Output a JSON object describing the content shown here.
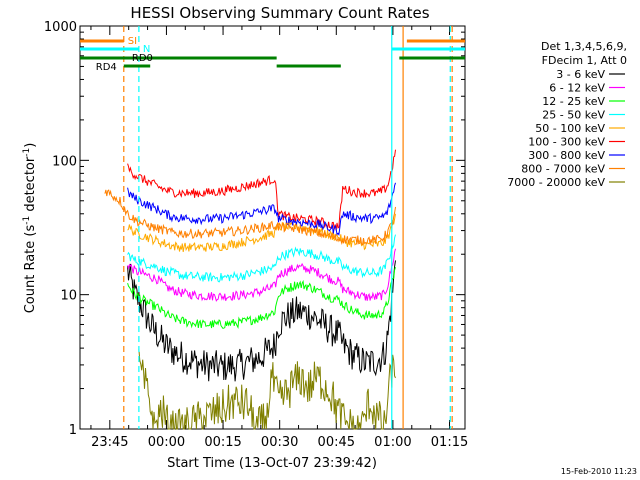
{
  "chart_data": {
    "type": "line",
    "title": "HESSI Observing Summary Count Rates",
    "xlabel": "Start Time (13-Oct-07 23:39:42)",
    "ylabel_main": "Count Rate (s",
    "ylabel_sup1": "-1",
    "ylabel_mid": " detector",
    "ylabel_sup2": "-1",
    "ylabel_end": ")",
    "yscale": "log",
    "xlim_minutes": [
      -2.6,
      99.4
    ],
    "ylim": [
      1,
      1000
    ],
    "x_ticks": [
      {
        "label": "23:45",
        "minute": 5.3
      },
      {
        "label": "00:00",
        "minute": 20.3
      },
      {
        "label": "00:15",
        "minute": 35.3
      },
      {
        "label": "00:30",
        "minute": 50.3
      },
      {
        "label": "00:45",
        "minute": 65.3
      },
      {
        "label": "01:00",
        "minute": 80.3
      },
      {
        "label": "01:15",
        "minute": 95.3
      }
    ],
    "y_ticks": [
      {
        "label": "1",
        "value": 1
      },
      {
        "label": "10",
        "value": 10
      },
      {
        "label": "100",
        "value": 100
      },
      {
        "label": "1000",
        "value": 1000
      }
    ],
    "legend_header": [
      "Det 1,3,4,5,6,9,",
      "FDecim 1, Att 0"
    ],
    "series": [
      {
        "name": "3 - 6 keV",
        "color": "#000000",
        "points": [
          [
            10,
            15
          ],
          [
            12,
            10
          ],
          [
            14,
            8
          ],
          [
            16,
            6
          ],
          [
            18,
            5
          ],
          [
            20,
            4.2
          ],
          [
            22,
            3.8
          ],
          [
            25,
            3.4
          ],
          [
            30,
            3.0
          ],
          [
            35,
            2.9
          ],
          [
            40,
            3.0
          ],
          [
            45,
            3.4
          ],
          [
            49,
            4.2
          ],
          [
            50,
            6
          ],
          [
            52,
            6.8
          ],
          [
            55,
            7.5
          ],
          [
            58,
            7.2
          ],
          [
            61,
            6.3
          ],
          [
            64,
            5.4
          ],
          [
            66,
            5.0
          ],
          [
            67,
            4.2
          ],
          [
            70,
            3.5
          ],
          [
            73,
            3.1
          ],
          [
            76,
            3.2
          ],
          [
            78,
            3.6
          ],
          [
            79,
            5
          ],
          [
            80,
            9
          ],
          [
            81,
            18
          ]
        ]
      },
      {
        "name": "6 - 12 keV",
        "color": "#ff00ff",
        "points": [
          [
            10,
            17
          ],
          [
            12,
            15
          ],
          [
            15,
            14
          ],
          [
            18,
            13
          ],
          [
            20,
            11.5
          ],
          [
            22,
            10.8
          ],
          [
            25,
            10.2
          ],
          [
            30,
            9.8
          ],
          [
            35,
            9.7
          ],
          [
            40,
            9.9
          ],
          [
            45,
            10.5
          ],
          [
            49,
            11.5
          ],
          [
            50,
            14
          ],
          [
            52,
            15
          ],
          [
            55,
            16
          ],
          [
            58,
            15.5
          ],
          [
            61,
            14.5
          ],
          [
            64,
            13
          ],
          [
            66,
            12.5
          ],
          [
            67,
            11
          ],
          [
            70,
            10.2
          ],
          [
            73,
            9.6
          ],
          [
            76,
            9.6
          ],
          [
            78,
            10
          ],
          [
            79,
            12
          ],
          [
            80,
            16
          ],
          [
            81,
            22
          ]
        ]
      },
      {
        "name": "12 - 25 keV",
        "color": "#00ff00",
        "points": [
          [
            10,
            12
          ],
          [
            12,
            10
          ],
          [
            15,
            8.8
          ],
          [
            18,
            8.0
          ],
          [
            20,
            7.2
          ],
          [
            22,
            6.7
          ],
          [
            25,
            6.3
          ],
          [
            30,
            6.0
          ],
          [
            35,
            6.0
          ],
          [
            40,
            6.2
          ],
          [
            45,
            6.7
          ],
          [
            49,
            7.5
          ],
          [
            50,
            10
          ],
          [
            52,
            11
          ],
          [
            55,
            12
          ],
          [
            58,
            11.5
          ],
          [
            61,
            10.5
          ],
          [
            64,
            9.5
          ],
          [
            66,
            9.2
          ],
          [
            67,
            8.5
          ],
          [
            70,
            7.5
          ],
          [
            73,
            7.0
          ],
          [
            76,
            7.0
          ],
          [
            78,
            7.5
          ],
          [
            79,
            9
          ],
          [
            80,
            12
          ],
          [
            81,
            16
          ]
        ]
      },
      {
        "name": "25 - 50 keV",
        "color": "#00ffff",
        "points": [
          [
            10,
            20
          ],
          [
            12,
            18
          ],
          [
            15,
            17
          ],
          [
            18,
            16
          ],
          [
            20,
            15
          ],
          [
            22,
            14.5
          ],
          [
            25,
            13.8
          ],
          [
            30,
            13.5
          ],
          [
            35,
            13.4
          ],
          [
            40,
            13.8
          ],
          [
            45,
            14.8
          ],
          [
            49,
            16
          ],
          [
            50,
            19
          ],
          [
            52,
            20
          ],
          [
            55,
            21
          ],
          [
            58,
            20.5
          ],
          [
            61,
            19.5
          ],
          [
            64,
            18
          ],
          [
            66,
            17.5
          ],
          [
            67,
            16
          ],
          [
            70,
            15
          ],
          [
            73,
            14.5
          ],
          [
            76,
            14.5
          ],
          [
            78,
            15.5
          ],
          [
            79,
            18
          ],
          [
            80,
            22
          ],
          [
            81,
            28
          ]
        ]
      },
      {
        "name": "50 - 100 keV",
        "color": "#ffaa00",
        "points": [
          [
            10,
            32
          ],
          [
            12,
            29
          ],
          [
            15,
            27
          ],
          [
            18,
            25
          ],
          [
            20,
            24
          ],
          [
            22,
            23
          ],
          [
            25,
            22.5
          ],
          [
            30,
            22.5
          ],
          [
            35,
            23
          ],
          [
            40,
            24.5
          ],
          [
            45,
            26.5
          ],
          [
            49,
            29
          ],
          [
            50,
            32
          ],
          [
            52,
            32
          ],
          [
            55,
            32
          ],
          [
            58,
            31
          ],
          [
            61,
            29.5
          ],
          [
            64,
            27.5
          ],
          [
            66,
            27
          ],
          [
            67,
            25
          ],
          [
            70,
            24
          ],
          [
            73,
            23.5
          ],
          [
            76,
            23.5
          ],
          [
            78,
            24.5
          ],
          [
            79,
            27
          ],
          [
            80,
            32
          ],
          [
            81,
            40
          ]
        ]
      },
      {
        "name": "100 - 300 keV",
        "color": "#ff0000",
        "points": [
          [
            10,
            88
          ],
          [
            12,
            78
          ],
          [
            15,
            70
          ],
          [
            18,
            64
          ],
          [
            20,
            60
          ],
          [
            22,
            58
          ],
          [
            25,
            57
          ],
          [
            30,
            57
          ],
          [
            35,
            59
          ],
          [
            40,
            63
          ],
          [
            45,
            68
          ],
          [
            49,
            73
          ],
          [
            50,
            40
          ],
          [
            52,
            38
          ],
          [
            55,
            37
          ],
          [
            58,
            36
          ],
          [
            61,
            35
          ],
          [
            64,
            33
          ],
          [
            66,
            32
          ],
          [
            67,
            62
          ],
          [
            70,
            58
          ],
          [
            73,
            57
          ],
          [
            76,
            57
          ],
          [
            78,
            60
          ],
          [
            79,
            66
          ],
          [
            80,
            85
          ],
          [
            81,
            120
          ]
        ]
      },
      {
        "name": "300 - 800 keV",
        "color": "#0000ff",
        "points": [
          [
            10,
            58
          ],
          [
            12,
            52
          ],
          [
            15,
            47
          ],
          [
            18,
            43
          ],
          [
            20,
            40
          ],
          [
            22,
            38
          ],
          [
            25,
            37
          ],
          [
            30,
            36.5
          ],
          [
            35,
            37
          ],
          [
            40,
            39
          ],
          [
            45,
            41.5
          ],
          [
            49,
            44
          ],
          [
            50,
            37
          ],
          [
            52,
            36
          ],
          [
            55,
            35
          ],
          [
            58,
            34
          ],
          [
            61,
            33
          ],
          [
            64,
            31
          ],
          [
            66,
            30
          ],
          [
            67,
            40
          ],
          [
            70,
            38
          ],
          [
            73,
            37
          ],
          [
            76,
            37
          ],
          [
            78,
            38.5
          ],
          [
            79,
            42
          ],
          [
            80,
            52
          ],
          [
            81,
            68
          ]
        ]
      },
      {
        "name": "800 - 7000 keV",
        "color": "#ff8000",
        "points": [
          [
            4,
            60
          ],
          [
            6,
            55
          ],
          [
            8,
            50
          ],
          [
            10,
            40
          ],
          [
            12,
            36
          ],
          [
            15,
            33
          ],
          [
            18,
            31
          ],
          [
            20,
            30
          ],
          [
            22,
            29
          ],
          [
            25,
            28.5
          ],
          [
            30,
            28.5
          ],
          [
            35,
            29
          ],
          [
            40,
            30
          ],
          [
            45,
            31.5
          ],
          [
            49,
            33
          ],
          [
            50,
            32
          ],
          [
            55,
            31
          ],
          [
            60,
            29
          ],
          [
            64,
            27
          ],
          [
            66,
            26
          ],
          [
            67,
            26
          ],
          [
            70,
            25.5
          ],
          [
            76,
            25.5
          ],
          [
            78,
            27
          ],
          [
            80,
            33
          ],
          [
            81,
            45
          ]
        ]
      },
      {
        "name": "7000 - 20000 keV",
        "color": "#808000",
        "points": [
          [
            13,
            3
          ],
          [
            14,
            2.4
          ],
          [
            16,
            1.6
          ],
          [
            17,
            1
          ],
          [
            19,
            1.4
          ],
          [
            21,
            1
          ],
          [
            24,
            1
          ],
          [
            35,
            1.4
          ],
          [
            38,
            1.6
          ],
          [
            42,
            1.5
          ],
          [
            44,
            1
          ],
          [
            47,
            1.2
          ],
          [
            48,
            2.5
          ],
          [
            50,
            1.6
          ],
          [
            52,
            1.8
          ],
          [
            54,
            2.2
          ],
          [
            56,
            2.4
          ],
          [
            58,
            2.0
          ],
          [
            60,
            2.4
          ],
          [
            62,
            2.2
          ],
          [
            64,
            1.8
          ],
          [
            66,
            1.3
          ],
          [
            68,
            1.1
          ],
          [
            70,
            1
          ],
          [
            72,
            1
          ],
          [
            74,
            1.6
          ],
          [
            78,
            1
          ],
          [
            80,
            2.8
          ],
          [
            81,
            2.4
          ]
        ]
      }
    ],
    "flags": [
      {
        "label": "SI",
        "color": "#ff8000"
      },
      {
        "label": "N",
        "color": "#00ffff"
      },
      {
        "label": "RD0",
        "color": "#008000"
      },
      {
        "label": "RD4",
        "color": "#008000"
      }
    ]
  },
  "footer": {
    "timestamp": "15-Feb-2010 11:23"
  }
}
